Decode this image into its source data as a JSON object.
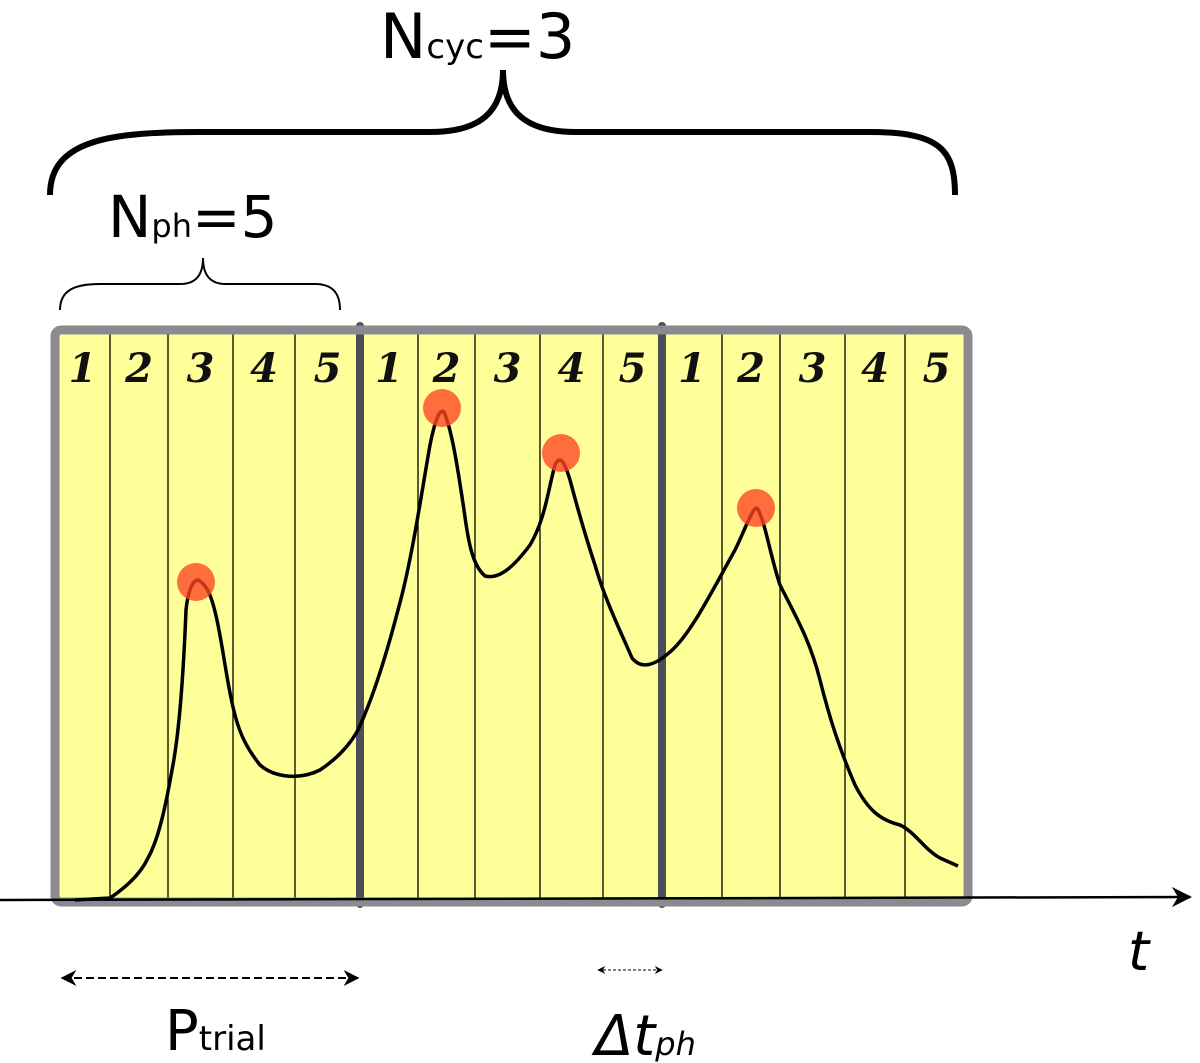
{
  "labels": {
    "n_cyc": {
      "main": "N",
      "sub": "cyc",
      "value": "=3"
    },
    "n_ph": {
      "main": "N",
      "sub": "ph",
      "value": "=5"
    },
    "axis": "t",
    "p_trial": {
      "main": "P",
      "sub": "trial"
    },
    "dt_ph": {
      "main": "Δt",
      "sub": "ph"
    }
  },
  "cycles": [
    {
      "phases": [
        "1",
        "2",
        "3",
        "4",
        "5"
      ]
    },
    {
      "phases": [
        "1",
        "2",
        "3",
        "4",
        "5"
      ]
    },
    {
      "phases": [
        "1",
        "2",
        "3",
        "4",
        "5"
      ]
    }
  ]
}
